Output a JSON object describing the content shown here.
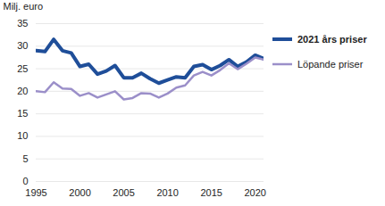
{
  "chart_data": {
    "type": "line",
    "y_label": "Milj. euro",
    "x": [
      1995,
      1996,
      1997,
      1998,
      1999,
      2000,
      2001,
      2002,
      2003,
      2004,
      2005,
      2006,
      2007,
      2008,
      2009,
      2010,
      2011,
      2012,
      2013,
      2014,
      2015,
      2016,
      2017,
      2018,
      2019,
      2020,
      2021
    ],
    "series": [
      {
        "name": "2021 års priser",
        "color": "#1f4e99",
        "values": [
          29,
          28.8,
          31.5,
          29,
          28.5,
          25.5,
          26,
          23.8,
          24.5,
          25.7,
          23,
          23,
          24,
          22.8,
          21.8,
          22.5,
          23.2,
          23,
          25.5,
          25.9,
          24.8,
          25.7,
          27,
          25.5,
          26.5,
          28,
          27.2
        ]
      },
      {
        "name": "Löpande priser",
        "color": "#9b8fc9",
        "values": [
          20,
          19.8,
          22,
          20.6,
          20.5,
          19,
          19.6,
          18.6,
          19.3,
          20,
          18.2,
          18.5,
          19.6,
          19.5,
          18.6,
          19.5,
          20.8,
          21.3,
          23.5,
          24.3,
          23.5,
          24.7,
          26.2,
          24.9,
          26.1,
          27.5,
          27
        ]
      }
    ],
    "xlim": [
      1995,
      2021
    ],
    "xticks": [
      1995,
      2000,
      2005,
      2010,
      2015,
      2020
    ],
    "ylim": [
      0,
      35
    ],
    "yticks": [
      0,
      5,
      10,
      15,
      20,
      25,
      30,
      35
    ],
    "grid": true,
    "legend": "right"
  }
}
